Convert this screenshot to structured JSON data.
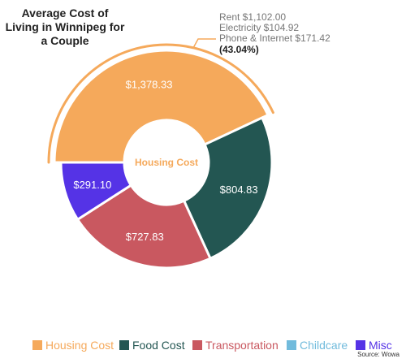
{
  "chart_data": {
    "type": "donut",
    "title": "Average Cost of Living in Winnipeg for a Couple",
    "center_label": "Housing Cost",
    "unit": "$",
    "series": [
      {
        "name": "Housing Cost",
        "value": 1378.33,
        "label": "$1,378.33",
        "color": "#F5A95B"
      },
      {
        "name": "Food Cost",
        "value": 804.83,
        "label": "$804.83",
        "color": "#235652"
      },
      {
        "name": "Transportation",
        "value": 727.83,
        "label": "$727.83",
        "color": "#C95860"
      },
      {
        "name": "Childcare",
        "value": 0,
        "label": "",
        "color": "#71BBDC"
      },
      {
        "name": "Misc",
        "value": 291.1,
        "label": "$291.10",
        "color": "#5533E6"
      }
    ],
    "annotation": {
      "lines": [
        "Rent $1,102.00",
        "Electricity $104.92",
        "Phone & Internet $171.42"
      ],
      "percent": "(43.04%)"
    },
    "legend_position": "bottom",
    "source": "Source: Wowa"
  }
}
